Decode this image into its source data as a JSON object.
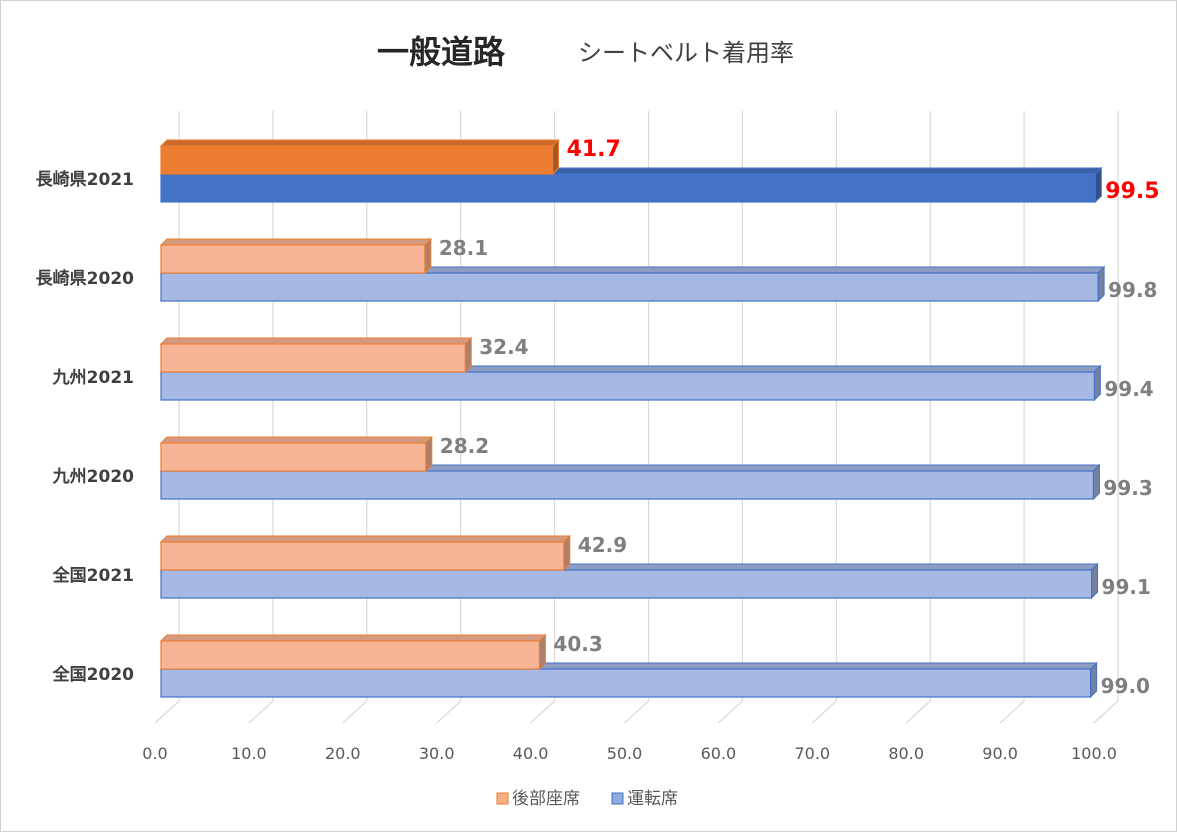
{
  "chart_data": {
    "type": "bar",
    "orientation": "horizontal",
    "title": "一般道路",
    "subtitle": "シートベルト着用率",
    "categories": [
      "全国2020",
      "全国2021",
      "九州2020",
      "九州2021",
      "長崎県2020",
      "長崎県2021"
    ],
    "series": [
      {
        "name": "後部座席",
        "values": [
          40.3,
          42.9,
          28.2,
          32.4,
          28.1,
          41.7
        ]
      },
      {
        "name": "運転席",
        "values": [
          99.0,
          99.1,
          99.3,
          99.4,
          99.8,
          99.5
        ]
      }
    ],
    "value_labels": {
      "rear": [
        "40.3",
        "42.9",
        "28.2",
        "32.4",
        "28.1",
        "41.7"
      ],
      "driver": [
        "99.0",
        "99.1",
        "99.3",
        "99.4",
        "99.8",
        "99.5"
      ]
    },
    "xlim": [
      0,
      100
    ],
    "xticks": [
      "0.0",
      "10.0",
      "20.0",
      "30.0",
      "40.0",
      "50.0",
      "60.0",
      "70.0",
      "80.0",
      "90.0",
      "100.0"
    ],
    "gridlines": true,
    "legend_position": "bottom",
    "highlighted_category": "長崎県2021",
    "colors": {
      "rear_light": "#f8b596",
      "rear_highlight": "#ed7d31",
      "driver_light": "#a6b8e4",
      "driver_highlight": "#4472c4",
      "highlight_label": "#ff0000",
      "label": "#7f7f7f"
    }
  }
}
